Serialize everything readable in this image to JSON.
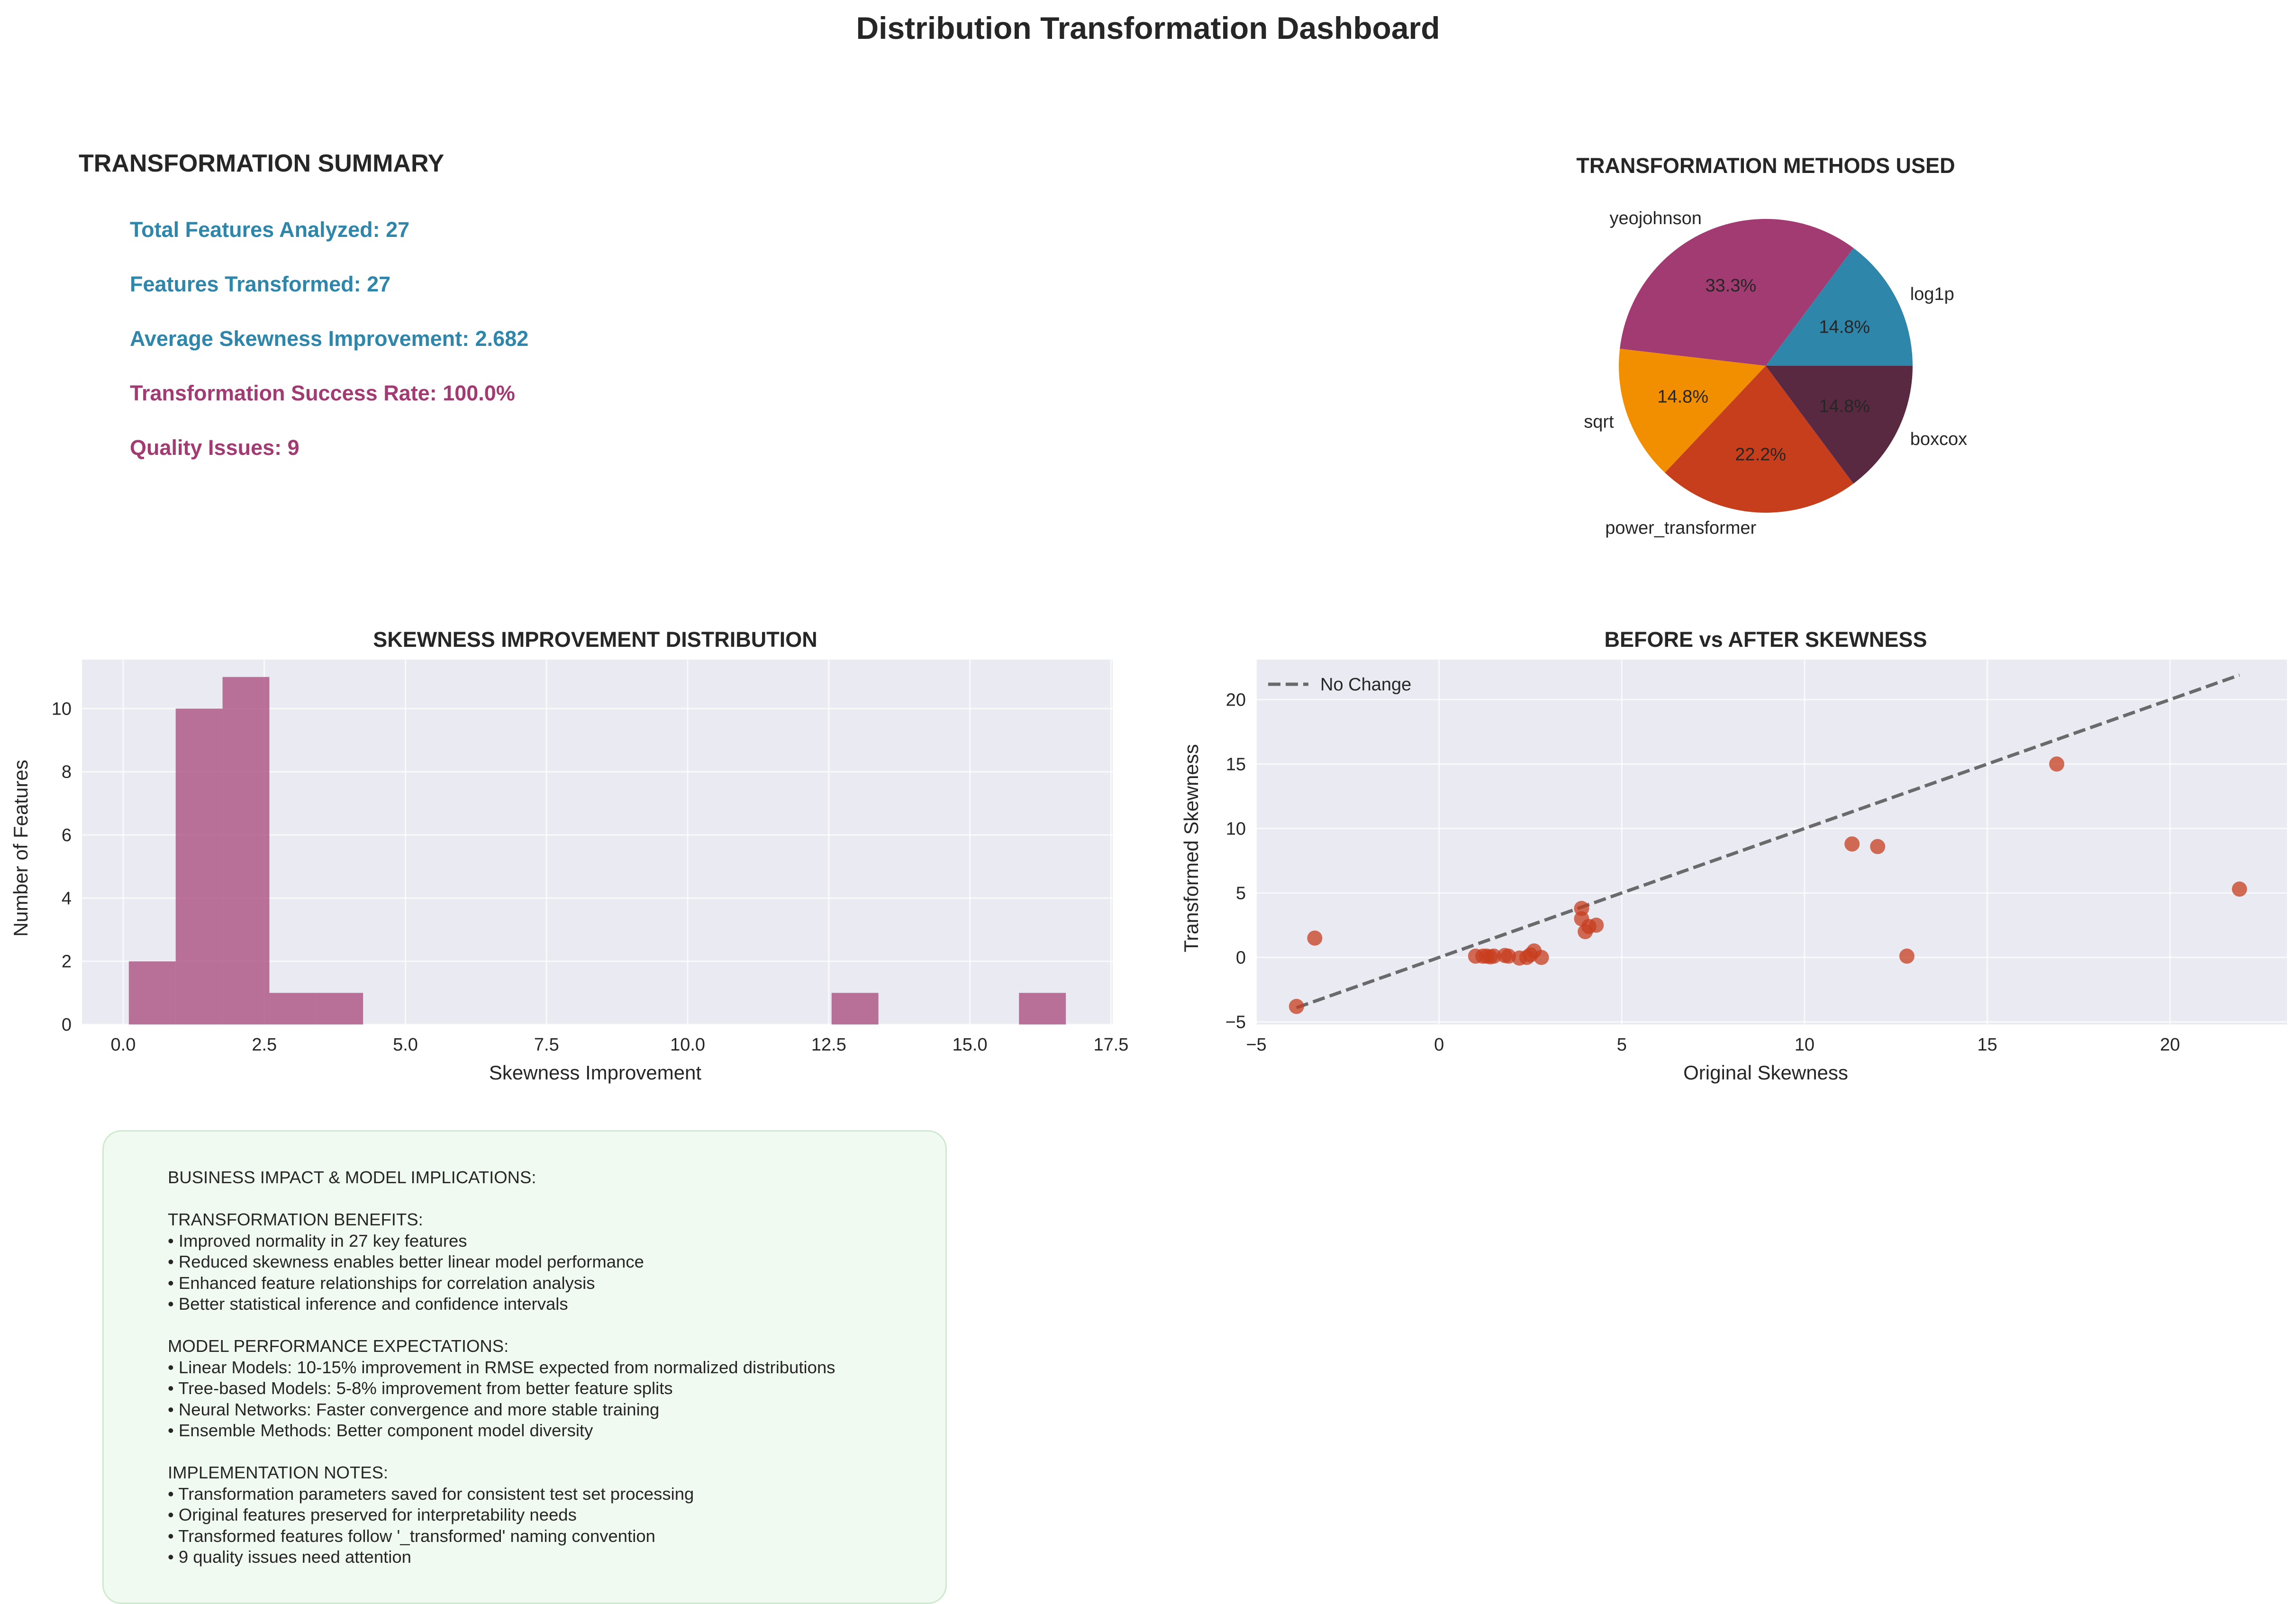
{
  "page_title": "Distribution Transformation Dashboard",
  "summary": {
    "heading": "TRANSFORMATION SUMMARY",
    "stats": [
      {
        "text": "Total Features Analyzed: 27",
        "color": "#2e86ab"
      },
      {
        "text": "Features Transformed: 27",
        "color": "#2e86ab"
      },
      {
        "text": "Average Skewness Improvement: 2.682",
        "color": "#2e86ab"
      },
      {
        "text": "Transformation Success Rate: 100.0%",
        "color": "#a23b72"
      },
      {
        "text": "Quality Issues: 9",
        "color": "#a23b72"
      }
    ]
  },
  "business": {
    "title": "BUSINESS IMPACT & MODEL IMPLICATIONS:",
    "sections": [
      {
        "heading": "TRANSFORMATION BENEFITS:",
        "lines": [
          "• Improved normality in 27 key features",
          "• Reduced skewness enables better linear model performance",
          "• Enhanced feature relationships for correlation analysis",
          "• Better statistical inference and confidence intervals"
        ]
      },
      {
        "heading": "MODEL PERFORMANCE EXPECTATIONS:",
        "lines": [
          "• Linear Models: 10-15% improvement in RMSE expected from normalized distributions",
          "• Tree-based Models: 5-8% improvement from better feature splits",
          "• Neural Networks: Faster convergence and more stable training",
          "• Ensemble Methods: Better component model diversity"
        ]
      },
      {
        "heading": "IMPLEMENTATION NOTES:",
        "lines": [
          "• Transformation parameters saved for consistent test set processing",
          "• Original features preserved for interpretability needs",
          "• Transformed features follow '_transformed' naming convention",
          "• 9 quality issues need attention"
        ]
      }
    ],
    "background_color": "#f0faf0"
  },
  "chart_data": [
    {
      "type": "pie",
      "title": "TRANSFORMATION METHODS USED",
      "labels": [
        "log1p",
        "yeojohnson",
        "sqrt",
        "power_transformer",
        "boxcox"
      ],
      "values": [
        14.8,
        33.3,
        14.8,
        22.2,
        14.8
      ],
      "pct_labels": [
        "14.8%",
        "33.3%",
        "14.8%",
        "22.2%",
        "14.8%"
      ],
      "colors": [
        "#2e86ab",
        "#a23b72",
        "#f18f01",
        "#c73e1d",
        "#592941"
      ],
      "start_angle_deg": 0
    },
    {
      "type": "bar",
      "title": "SKEWNESS IMPROVEMENT DISTRIBUTION",
      "xlabel": "Skewness Improvement",
      "ylabel": "Number of Features",
      "bin_edges": [
        0.1,
        0.93,
        1.76,
        2.59,
        3.42,
        4.25,
        5.08,
        5.91,
        6.74,
        7.57,
        8.4,
        9.23,
        10.06,
        10.89,
        11.72,
        12.55,
        13.38,
        14.21,
        15.04,
        15.87,
        16.7
      ],
      "counts": [
        2,
        10,
        11,
        1,
        1,
        0,
        0,
        0,
        0,
        0,
        0,
        0,
        0,
        0,
        0,
        1,
        0,
        0,
        0,
        1
      ],
      "xlim": [
        -0.73,
        17.53
      ],
      "ylim": [
        0,
        11.55
      ],
      "xticks": [
        0.0,
        2.5,
        5.0,
        7.5,
        10.0,
        12.5,
        15.0,
        17.5
      ],
      "xtick_labels": [
        "0.0",
        "2.5",
        "5.0",
        "7.5",
        "10.0",
        "12.5",
        "15.0",
        "17.5"
      ],
      "yticks": [
        0,
        2,
        4,
        6,
        8,
        10
      ],
      "ytick_labels": [
        "0",
        "2",
        "4",
        "6",
        "8",
        "10"
      ],
      "color": "#a23b72",
      "grid": true
    },
    {
      "type": "scatter",
      "title": "BEFORE vs AFTER SKEWNESS",
      "xlabel": "Original Skewness",
      "ylabel": "Transformed Skewness",
      "points": [
        [
          -3.9,
          -3.8
        ],
        [
          -3.4,
          1.5
        ],
        [
          1.0,
          0.1
        ],
        [
          1.2,
          0.1
        ],
        [
          1.3,
          0.1
        ],
        [
          1.4,
          0.05
        ],
        [
          1.5,
          0.1
        ],
        [
          1.8,
          0.15
        ],
        [
          1.9,
          0.1
        ],
        [
          2.2,
          -0.05
        ],
        [
          2.4,
          0.0
        ],
        [
          2.6,
          0.5
        ],
        [
          2.8,
          0.0
        ],
        [
          2.5,
          0.2
        ],
        [
          3.9,
          3.8
        ],
        [
          3.9,
          3.0
        ],
        [
          4.0,
          2.0
        ],
        [
          4.1,
          2.4
        ],
        [
          4.3,
          2.5
        ],
        [
          11.3,
          8.8
        ],
        [
          12.0,
          8.6
        ],
        [
          12.8,
          0.1
        ],
        [
          16.9,
          15.0
        ],
        [
          21.9,
          5.3
        ]
      ],
      "reference_line": {
        "name": "No Change",
        "x": [
          -3.9,
          21.9
        ],
        "y": [
          -3.9,
          21.9
        ]
      },
      "xlim": [
        -5,
        23.2
      ],
      "ylim": [
        -5.2,
        23.1
      ],
      "xticks": [
        -5,
        0,
        5,
        10,
        15,
        20
      ],
      "xtick_labels": [
        "−5",
        "0",
        "5",
        "10",
        "15",
        "20"
      ],
      "yticks": [
        -5,
        0,
        5,
        10,
        15,
        20
      ],
      "ytick_labels": [
        "−5",
        "0",
        "5",
        "10",
        "15",
        "20"
      ],
      "point_color": "#c73e1d",
      "legend": "top-left",
      "grid": true
    }
  ]
}
